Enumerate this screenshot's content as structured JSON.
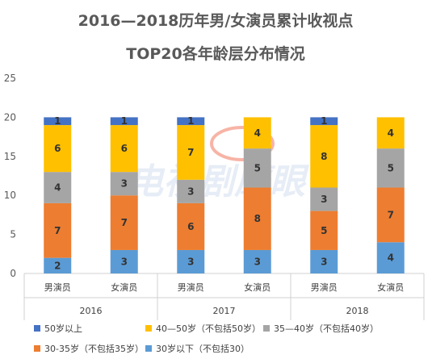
{
  "chart_data": {
    "type": "bar",
    "stacked": true,
    "title_lines": [
      "2016—2018历年男/女演员累计收视点",
      "TOP20各年龄层分布情况"
    ],
    "xlabel": "",
    "ylabel": "",
    "ylim": [
      0,
      25
    ],
    "yticks": [
      0,
      5,
      10,
      15,
      20,
      25
    ],
    "grid": false,
    "legend_position": "bottom",
    "groups": [
      "2016",
      "2017",
      "2018"
    ],
    "categories": [
      "男演员",
      "女演员",
      "男演员",
      "女演员",
      "男演员",
      "女演员"
    ],
    "group_index": [
      0,
      0,
      1,
      1,
      2,
      2
    ],
    "series": [
      {
        "name": "30岁以下（不包括30）",
        "color": "#5b9bd5",
        "label_color": "#333333",
        "values": [
          2,
          3,
          3,
          3,
          3,
          4
        ]
      },
      {
        "name": "30-35岁（不包括35岁）",
        "color": "#ed7d31",
        "label_color": "#333333",
        "values": [
          7,
          7,
          6,
          8,
          5,
          7
        ]
      },
      {
        "name": "35—40岁（不包括40岁）",
        "color": "#a5a5a5",
        "label_color": "#333333",
        "values": [
          4,
          3,
          3,
          5,
          3,
          5
        ]
      },
      {
        "name": "40—50岁（不包括50岁）",
        "color": "#ffc000",
        "label_color": "#333333",
        "values": [
          6,
          6,
          7,
          4,
          8,
          4
        ]
      },
      {
        "name": "50岁以上",
        "color": "#4472c4",
        "label_color": "#333333",
        "values": [
          1,
          1,
          1,
          0,
          1,
          0
        ]
      }
    ],
    "legend_order": [
      4,
      3,
      2,
      1,
      0
    ]
  },
  "watermark": {
    "text": "电视剧鹰眼",
    "colors": {
      "main": "#c9d6ea",
      "accent": "#e9553b"
    }
  }
}
